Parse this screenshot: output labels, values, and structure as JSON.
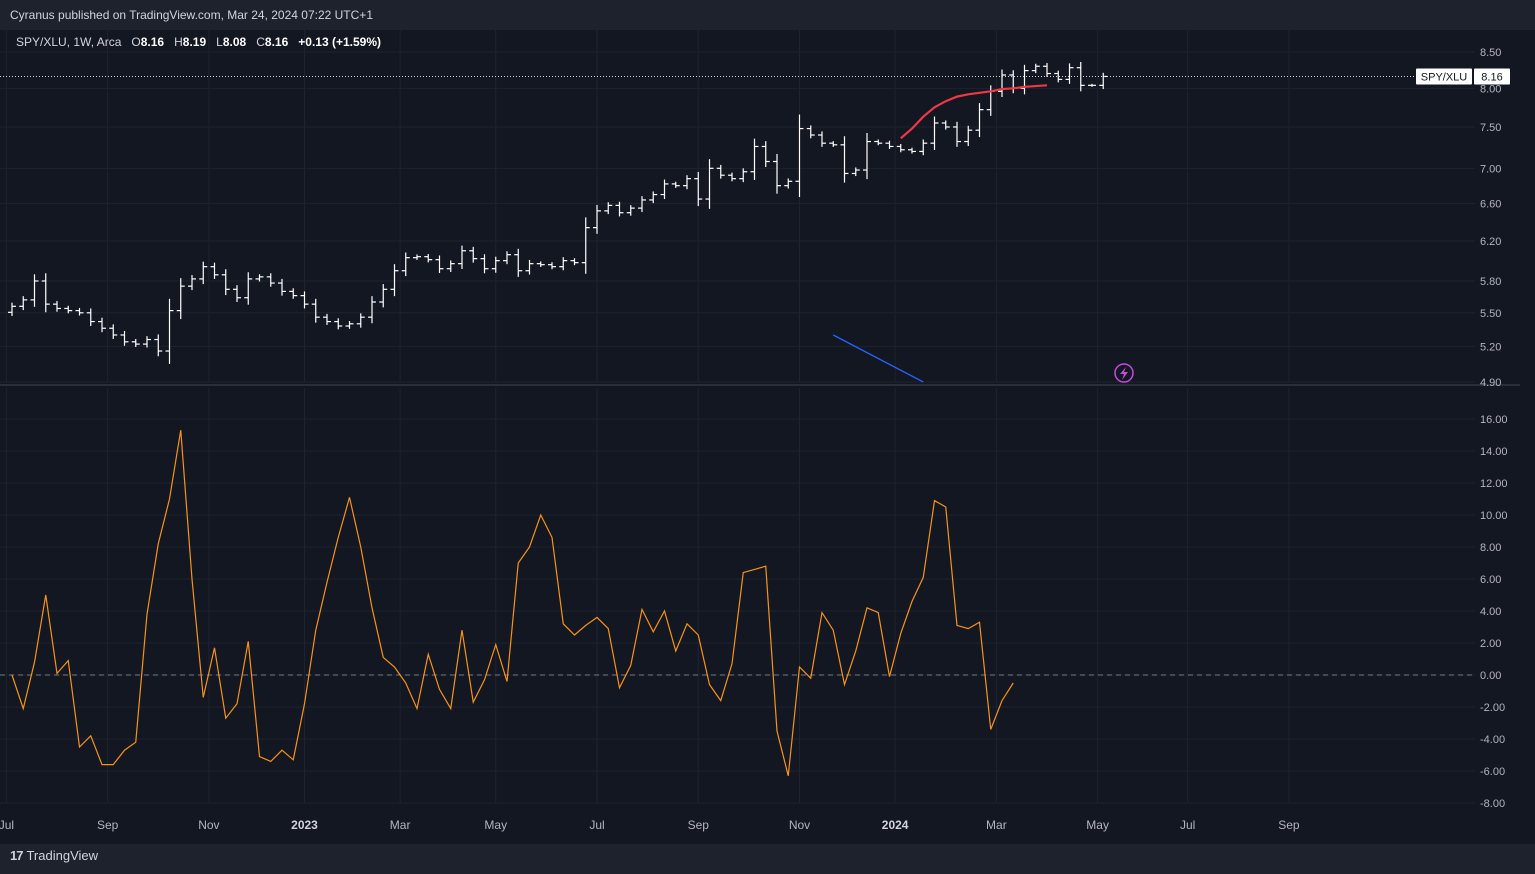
{
  "header": {
    "publish_text": "Cyranus published on TradingView.com, Mar 24, 2024 07:22 UTC+1"
  },
  "legend": {
    "symbol": "SPY/XLU, 1W, Arca",
    "open_label": "O",
    "open": "8.16",
    "high_label": "H",
    "high": "8.19",
    "low_label": "L",
    "low": "8.08",
    "close_label": "C",
    "close": "8.16",
    "change": "+0.13 (+1.59%)"
  },
  "price_label": {
    "symbol": "SPY/XLU",
    "value": "8.16"
  },
  "footer": {
    "brand": "TradingView"
  },
  "colors": {
    "background": "#131722",
    "grid": "#1f2330",
    "bars": "#ffffff",
    "ma": "#f23645",
    "trendline": "#2962ff",
    "oscillator": "#f7931a",
    "zero_line": "#787b86",
    "event_icon": "#c74bde"
  },
  "event_icon": "lightning-icon",
  "chart_data": [
    {
      "type": "ohlc",
      "title": "SPY/XLU, 1W, Arca",
      "x_tick_labels": [
        "Jul",
        "Sep",
        "Nov",
        "2023",
        "Mar",
        "May",
        "Jul",
        "Sep",
        "Nov",
        "2024",
        "Mar",
        "May",
        "Jul",
        "Sep"
      ],
      "x_tick_weeks": [
        -0.5,
        8.5,
        17.5,
        26.0,
        34.5,
        43.0,
        52.0,
        61.0,
        70.0,
        78.5,
        87.5,
        96.5,
        104.5,
        113.5
      ],
      "y_ticks": [
        "4.90",
        "5.20",
        "5.50",
        "5.80",
        "6.20",
        "6.60",
        "7.00",
        "7.50",
        "8.00",
        "8.50"
      ],
      "ylim": [
        4.9,
        8.5
      ],
      "scale": "log",
      "grid": true,
      "last_price_line": 8.16,
      "closes": [
        5.56,
        5.62,
        5.8,
        5.58,
        5.54,
        5.52,
        5.5,
        5.42,
        5.36,
        5.3,
        5.24,
        5.22,
        5.26,
        5.16,
        5.52,
        5.75,
        5.82,
        5.94,
        5.86,
        5.72,
        5.64,
        5.82,
        5.84,
        5.78,
        5.7,
        5.66,
        5.58,
        5.46,
        5.42,
        5.38,
        5.4,
        5.46,
        5.6,
        5.72,
        5.9,
        6.03,
        6.04,
        6.01,
        5.92,
        5.97,
        6.1,
        6.02,
        5.92,
        6.0,
        6.06,
        5.9,
        5.97,
        5.96,
        5.94,
        6.0,
        5.98,
        6.34,
        6.52,
        6.58,
        6.5,
        6.55,
        6.64,
        6.7,
        6.82,
        6.8,
        6.88,
        6.65,
        7.0,
        6.92,
        6.88,
        6.96,
        7.26,
        7.08,
        6.8,
        6.85,
        7.48,
        7.4,
        7.3,
        7.28,
        6.94,
        6.98,
        7.32,
        7.3,
        7.26,
        7.22,
        7.2,
        7.3,
        7.55,
        7.5,
        7.32,
        7.46,
        7.72,
        7.96,
        8.18,
        8.0,
        8.24,
        8.3,
        8.2,
        8.12,
        8.28,
        8.04,
        8.04,
        8.16
      ],
      "ma_series": {
        "start_week": 79,
        "values": [
          7.36,
          7.48,
          7.63,
          7.75,
          7.83,
          7.89,
          7.92,
          7.94,
          7.96,
          7.99,
          8.0,
          8.02,
          8.03,
          8.04
        ]
      },
      "trendline": {
        "start": {
          "week": 73,
          "value": 5.3
        },
        "end": {
          "week": 81,
          "value": 4.9
        }
      }
    },
    {
      "type": "line",
      "title": "",
      "y_ticks": [
        "-8.00",
        "-6.00",
        "-4.00",
        "-2.00",
        "0.00",
        "2.00",
        "4.00",
        "6.00",
        "8.00",
        "10.00",
        "12.00",
        "14.00",
        "16.00"
      ],
      "ylim": [
        -8,
        16
      ],
      "zero_line": 0,
      "values": [
        0.0,
        -2.1,
        0.8,
        5.0,
        0.1,
        0.9,
        -4.5,
        -3.8,
        -5.6,
        -5.6,
        -4.7,
        -4.2,
        3.8,
        8.2,
        11.0,
        15.3,
        6.0,
        -1.4,
        1.7,
        -2.7,
        -1.8,
        2.1,
        -5.1,
        -5.4,
        -4.7,
        -5.3,
        -1.8,
        2.8,
        5.8,
        8.6,
        11.1,
        8.0,
        4.2,
        1.1,
        0.5,
        -0.5,
        -2.1,
        1.3,
        -0.9,
        -2.1,
        2.8,
        -1.7,
        -0.3,
        1.9,
        -0.4,
        7.0,
        8.0,
        10.0,
        8.6,
        3.2,
        2.5,
        3.1,
        3.6,
        2.9,
        -0.8,
        0.6,
        4.1,
        2.7,
        4.0,
        1.5,
        3.2,
        2.5,
        -0.6,
        -1.6,
        0.7,
        6.4,
        6.6,
        6.8,
        -3.5,
        -6.3,
        0.5,
        -0.2,
        3.9,
        2.8,
        -0.6,
        1.5,
        4.2,
        3.9,
        -0.1,
        2.6,
        4.6,
        6.1,
        10.9,
        10.5,
        3.1,
        2.9,
        3.3,
        -3.4,
        -1.6,
        -0.5
      ]
    }
  ]
}
